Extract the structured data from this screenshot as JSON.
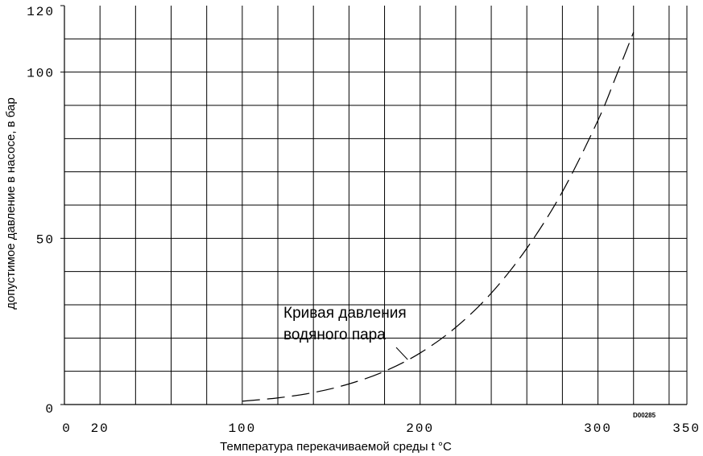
{
  "chart_data": {
    "type": "line",
    "xlabel": "Температура перекачиваемой среды t °C",
    "ylabel": "допустимое давление в насосе, в бар",
    "xlim": [
      0,
      350
    ],
    "ylim": [
      0,
      120
    ],
    "x_ticks": [
      {
        "value": 0,
        "label": "0"
      },
      {
        "value": 20,
        "label": "20"
      },
      {
        "value": 100,
        "label": "100"
      },
      {
        "value": 200,
        "label": "200"
      },
      {
        "value": 300,
        "label": "300"
      },
      {
        "value": 350,
        "label": "350"
      }
    ],
    "y_ticks": [
      {
        "value": 0,
        "label": "0"
      },
      {
        "value": 50,
        "label": "50"
      },
      {
        "value": 100,
        "label": "100"
      },
      {
        "value": 120,
        "label": "120"
      }
    ],
    "grid": true,
    "series": [
      {
        "name": "Кривая давления водяного пара",
        "style": "dashed",
        "x": [
          100,
          120,
          140,
          160,
          180,
          200,
          220,
          240,
          260,
          280,
          300,
          310,
          320
        ],
        "y": [
          1.0,
          2.0,
          3.6,
          6.2,
          10.0,
          15.5,
          23.2,
          33.5,
          47.0,
          64.0,
          85.5,
          98.5,
          112.0
        ]
      }
    ],
    "annotation": {
      "line1": "Кривая давления",
      "line2": "водяного пара",
      "pointer_x": 193,
      "pointer_y": 14
    },
    "code": "D00285"
  }
}
